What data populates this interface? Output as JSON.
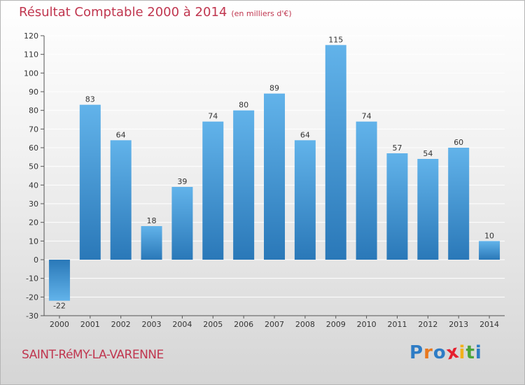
{
  "header": {
    "title": "Résultat Comptable 2000 à 2014",
    "subtitle": "(en milliers d'€)"
  },
  "footer": {
    "place": "SAINT-RéMY-LA-VARENNE",
    "logo_letters": [
      "P",
      "r",
      "o",
      "x",
      "i",
      "t",
      "i"
    ],
    "logo_colors": [
      "#2e7cc5",
      "#e8781e",
      "#2e7cc5",
      "#e5202f",
      "#f2b11a",
      "#4ba53a",
      "#2e7cc5"
    ]
  },
  "colors": {
    "bar_light": "#62b3ea",
    "bar_dark": "#2a78b8",
    "title": "#c0364f",
    "grid": "#ffffff",
    "axis": "#555555"
  },
  "chart_data": {
    "type": "bar",
    "title": "Résultat Comptable 2000 à 2014",
    "subtitle": "(en milliers d'€)",
    "xlabel": "",
    "ylabel": "",
    "categories": [
      "2000",
      "2001",
      "2002",
      "2003",
      "2004",
      "2005",
      "2006",
      "2007",
      "2008",
      "2009",
      "2010",
      "2011",
      "2012",
      "2013",
      "2014"
    ],
    "values": [
      -22,
      83,
      64,
      18,
      39,
      74,
      80,
      89,
      64,
      115,
      74,
      57,
      54,
      60,
      10
    ],
    "ylim": [
      -30,
      120
    ],
    "yticks": [
      -30,
      -20,
      -10,
      0,
      10,
      20,
      30,
      40,
      50,
      60,
      70,
      80,
      90,
      100,
      110,
      120
    ],
    "grid": true
  }
}
